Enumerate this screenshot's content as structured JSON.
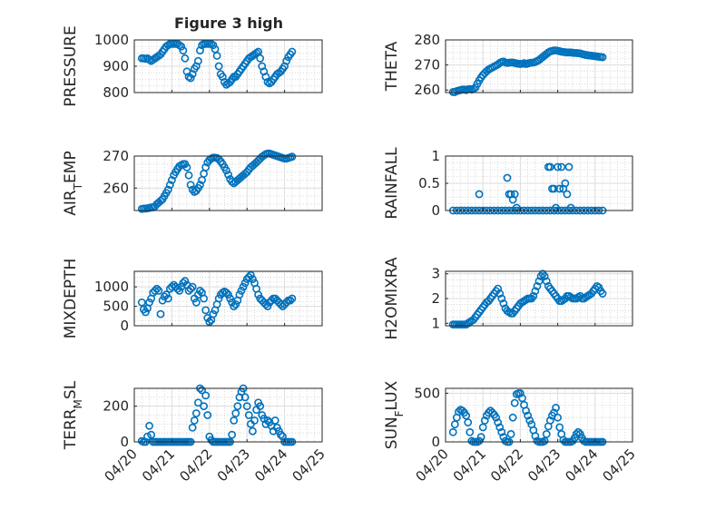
{
  "title": "Figure 3 high",
  "marker_color": "#0072bd",
  "x_tick_labels": [
    "04/20",
    "04/21",
    "04/22",
    "04/23",
    "04/24",
    "04/25"
  ],
  "chart_data": [
    {
      "type": "scatter",
      "ylabel": "PRESSURE",
      "ylim": [
        800,
        1000
      ],
      "yticks": [
        800,
        900,
        1000
      ],
      "x": [
        0.2,
        0.25,
        0.3,
        0.35,
        0.4,
        0.45,
        0.5,
        0.55,
        0.6,
        0.65,
        0.7,
        0.75,
        0.8,
        0.85,
        0.9,
        0.95,
        1.0,
        1.05,
        1.1,
        1.15,
        1.2,
        1.25,
        1.3,
        1.35,
        1.4,
        1.45,
        1.5,
        1.55,
        1.6,
        1.65,
        1.7,
        1.75,
        1.8,
        1.85,
        1.9,
        1.95,
        2.0,
        2.05,
        2.1,
        2.15,
        2.2,
        2.25,
        2.3,
        2.35,
        2.4,
        2.45,
        2.5,
        2.55,
        2.6,
        2.65,
        2.7,
        2.75,
        2.8,
        2.85,
        2.9,
        2.95,
        3.0,
        3.05,
        3.1,
        3.15,
        3.2,
        3.25,
        3.3,
        3.35,
        3.4,
        3.45,
        3.5,
        3.55,
        3.6,
        3.65,
        3.7,
        3.75,
        3.8,
        3.85,
        3.9,
        3.95,
        4.0,
        4.05,
        4.1,
        4.15,
        4.2
      ],
      "y": [
        930,
        930,
        928,
        930,
        925,
        920,
        925,
        930,
        935,
        940,
        945,
        955,
        965,
        975,
        980,
        985,
        985,
        985,
        985,
        985,
        980,
        975,
        960,
        930,
        880,
        860,
        855,
        870,
        890,
        900,
        920,
        960,
        980,
        985,
        985,
        985,
        985,
        985,
        980,
        965,
        940,
        900,
        870,
        860,
        840,
        830,
        835,
        840,
        850,
        860,
        860,
        870,
        880,
        890,
        900,
        910,
        920,
        930,
        935,
        940,
        945,
        950,
        955,
        930,
        900,
        880,
        860,
        840,
        835,
        840,
        850,
        860,
        870,
        875,
        880,
        890,
        900,
        920,
        935,
        945,
        955
      ]
    },
    {
      "type": "scatter",
      "ylabel": "THETA",
      "ylim": [
        259,
        280
      ],
      "yticks": [
        260,
        270,
        280
      ],
      "x": [
        0.2,
        0.25,
        0.3,
        0.35,
        0.4,
        0.45,
        0.5,
        0.55,
        0.6,
        0.65,
        0.7,
        0.75,
        0.8,
        0.85,
        0.9,
        0.95,
        1.0,
        1.05,
        1.1,
        1.15,
        1.2,
        1.25,
        1.3,
        1.35,
        1.4,
        1.45,
        1.5,
        1.55,
        1.6,
        1.65,
        1.7,
        1.75,
        1.8,
        1.85,
        1.9,
        1.95,
        2.0,
        2.05,
        2.1,
        2.15,
        2.2,
        2.25,
        2.3,
        2.35,
        2.4,
        2.45,
        2.5,
        2.55,
        2.6,
        2.65,
        2.7,
        2.75,
        2.8,
        2.85,
        2.9,
        2.95,
        3.0,
        3.05,
        3.1,
        3.15,
        3.2,
        3.25,
        3.3,
        3.35,
        3.4,
        3.45,
        3.5,
        3.55,
        3.6,
        3.65,
        3.7,
        3.75,
        3.8,
        3.85,
        3.9,
        3.95,
        4.0,
        4.05,
        4.1,
        4.15,
        4.2
      ],
      "y": [
        259.2,
        259.2,
        259.6,
        259.8,
        260,
        260.2,
        260.2,
        260,
        260.3,
        260.4,
        260.2,
        260.5,
        261,
        262.5,
        263.8,
        265,
        266,
        266.8,
        267.5,
        268.2,
        268.6,
        269,
        269.4,
        269.8,
        270.2,
        270.8,
        271.2,
        271.4,
        271,
        270.8,
        270.9,
        271,
        271,
        270.8,
        270.6,
        270.5,
        270.4,
        270.5,
        270.7,
        270.4,
        270.6,
        270.8,
        270.9,
        271,
        271.2,
        271.6,
        272,
        272.6,
        273.2,
        273.8,
        274.4,
        275,
        275.4,
        275.6,
        275.8,
        275.8,
        275.7,
        275.5,
        275.3,
        275.2,
        275.1,
        275,
        275,
        275,
        274.9,
        274.8,
        274.8,
        274.7,
        274.6,
        274.4,
        274.2,
        274,
        273.9,
        273.8,
        273.7,
        273.6,
        273.5,
        273.4,
        273.3,
        273.2,
        273.1
      ]
    },
    {
      "type": "scatter",
      "ylabel": "AIR_TEMP",
      "ylim": [
        253,
        270
      ],
      "yticks": [
        260,
        270
      ],
      "x": [
        0.2,
        0.25,
        0.3,
        0.35,
        0.4,
        0.45,
        0.5,
        0.55,
        0.6,
        0.65,
        0.7,
        0.75,
        0.8,
        0.85,
        0.9,
        0.95,
        1.0,
        1.05,
        1.1,
        1.15,
        1.2,
        1.25,
        1.3,
        1.35,
        1.4,
        1.45,
        1.5,
        1.55,
        1.6,
        1.65,
        1.7,
        1.75,
        1.8,
        1.85,
        1.9,
        1.95,
        2.0,
        2.05,
        2.1,
        2.15,
        2.2,
        2.25,
        2.3,
        2.35,
        2.4,
        2.45,
        2.5,
        2.55,
        2.6,
        2.65,
        2.7,
        2.75,
        2.8,
        2.85,
        2.9,
        2.95,
        3.0,
        3.05,
        3.1,
        3.15,
        3.2,
        3.25,
        3.3,
        3.35,
        3.4,
        3.45,
        3.5,
        3.55,
        3.6,
        3.65,
        3.7,
        3.75,
        3.8,
        3.85,
        3.9,
        3.95,
        4.0,
        4.05,
        4.1,
        4.15,
        4.2
      ],
      "y": [
        253.5,
        253.6,
        253.6,
        253.7,
        253.8,
        254,
        254,
        254.3,
        255,
        255.5,
        256,
        256.5,
        257.5,
        258.5,
        259.5,
        261,
        262.5,
        264,
        265,
        266,
        266.8,
        267.2,
        267.5,
        267.5,
        266.5,
        264,
        261,
        259.5,
        258.8,
        259.2,
        260,
        261,
        262.5,
        264.5,
        266.5,
        268,
        268.8,
        269.2,
        269.5,
        269.5,
        269.4,
        269,
        268.3,
        267.5,
        266.5,
        265.5,
        264.2,
        262.8,
        262,
        261.5,
        262,
        262.5,
        263,
        263.5,
        264,
        264.5,
        265,
        265.8,
        266.5,
        267,
        267.5,
        268,
        268.6,
        269.2,
        269.8,
        270.2,
        270.6,
        270.8,
        270.8,
        270.6,
        270.4,
        270.2,
        270,
        269.8,
        269.6,
        269.4,
        269.2,
        269.2,
        269.4,
        269.6,
        269.8
      ]
    },
    {
      "type": "scatter",
      "ylabel": "RAINFALL",
      "ylim": [
        0,
        1
      ],
      "yticks": [
        0,
        0.5,
        1
      ],
      "x": [
        0.2,
        0.3,
        0.4,
        0.5,
        0.6,
        0.7,
        0.8,
        0.9,
        1.0,
        1.1,
        1.2,
        1.3,
        1.4,
        1.5,
        1.6,
        1.7,
        1.8,
        1.9,
        2.0,
        2.1,
        2.2,
        2.3,
        2.4,
        2.5,
        2.6,
        2.7,
        2.8,
        2.9,
        3.0,
        3.1,
        3.2,
        3.3,
        3.4,
        3.5,
        3.6,
        3.7,
        3.8,
        3.9,
        4.0,
        4.1,
        4.2,
        0.9,
        1.65,
        1.7,
        1.75,
        1.8,
        1.85,
        1.9,
        2.75,
        2.8,
        2.85,
        2.9,
        2.95,
        3.0,
        3.05,
        3.1,
        3.15,
        3.2,
        3.25,
        3.3,
        3.35
      ],
      "y": [
        0,
        0,
        0,
        0,
        0,
        0,
        0,
        0,
        0,
        0,
        0,
        0,
        0,
        0,
        0,
        0,
        0,
        0,
        0,
        0,
        0,
        0,
        0,
        0,
        0,
        0,
        0,
        0,
        0,
        0,
        0,
        0,
        0,
        0,
        0,
        0,
        0,
        0,
        0,
        0,
        0,
        0.3,
        0.6,
        0.3,
        0.3,
        0.2,
        0.3,
        0.05,
        0.8,
        0.8,
        0.4,
        0.4,
        0.05,
        0.8,
        0.4,
        0.8,
        0.4,
        0.5,
        0.3,
        0.8,
        0.05
      ]
    },
    {
      "type": "scatter",
      "ylabel": "MIXDEPTH",
      "ylim": [
        0,
        1400
      ],
      "yticks": [
        0,
        500,
        1000
      ],
      "x": [
        0.2,
        0.25,
        0.3,
        0.35,
        0.4,
        0.45,
        0.5,
        0.55,
        0.6,
        0.65,
        0.7,
        0.75,
        0.8,
        0.85,
        0.9,
        0.95,
        1.0,
        1.05,
        1.1,
        1.15,
        1.2,
        1.25,
        1.3,
        1.35,
        1.4,
        1.45,
        1.5,
        1.55,
        1.6,
        1.65,
        1.7,
        1.75,
        1.8,
        1.85,
        1.9,
        1.95,
        2.0,
        2.05,
        2.1,
        2.15,
        2.2,
        2.25,
        2.3,
        2.35,
        2.4,
        2.45,
        2.5,
        2.55,
        2.6,
        2.65,
        2.7,
        2.75,
        2.8,
        2.85,
        2.9,
        2.95,
        3.0,
        3.05,
        3.1,
        3.15,
        3.2,
        3.25,
        3.3,
        3.35,
        3.4,
        3.45,
        3.5,
        3.55,
        3.6,
        3.65,
        3.7,
        3.75,
        3.8,
        3.85,
        3.9,
        3.95,
        4.0,
        4.05,
        4.1,
        4.15,
        4.2
      ],
      "y": [
        600,
        420,
        350,
        450,
        600,
        700,
        850,
        900,
        950,
        900,
        300,
        650,
        750,
        800,
        700,
        950,
        1000,
        1050,
        1000,
        950,
        900,
        1000,
        1100,
        1150,
        1050,
        900,
        950,
        1000,
        700,
        600,
        800,
        900,
        850,
        700,
        400,
        200,
        100,
        150,
        300,
        400,
        550,
        700,
        800,
        850,
        880,
        850,
        800,
        700,
        600,
        500,
        550,
        650,
        800,
        900,
        1000,
        1100,
        1200,
        1250,
        1300,
        1200,
        1100,
        950,
        800,
        700,
        650,
        600,
        550,
        500,
        600,
        650,
        700,
        700,
        650,
        600,
        550,
        500,
        550,
        600,
        650,
        650,
        700
      ]
    },
    {
      "type": "scatter",
      "ylabel": "H2OMIXRA",
      "ylim": [
        0.9,
        3.1
      ],
      "yticks": [
        1,
        2,
        3
      ],
      "x": [
        0.2,
        0.25,
        0.3,
        0.35,
        0.4,
        0.45,
        0.5,
        0.55,
        0.6,
        0.65,
        0.7,
        0.75,
        0.8,
        0.85,
        0.9,
        0.95,
        1.0,
        1.05,
        1.1,
        1.15,
        1.2,
        1.25,
        1.3,
        1.35,
        1.4,
        1.45,
        1.5,
        1.55,
        1.6,
        1.65,
        1.7,
        1.75,
        1.8,
        1.85,
        1.9,
        1.95,
        2.0,
        2.05,
        2.1,
        2.15,
        2.2,
        2.25,
        2.3,
        2.35,
        2.4,
        2.45,
        2.5,
        2.55,
        2.6,
        2.65,
        2.7,
        2.75,
        2.8,
        2.85,
        2.9,
        2.95,
        3.0,
        3.05,
        3.1,
        3.15,
        3.2,
        3.25,
        3.3,
        3.35,
        3.4,
        3.45,
        3.5,
        3.55,
        3.6,
        3.65,
        3.7,
        3.75,
        3.8,
        3.85,
        3.9,
        3.95,
        4.0,
        4.05,
        4.1,
        4.15,
        4.2
      ],
      "y": [
        0.95,
        0.95,
        0.95,
        0.95,
        0.95,
        0.95,
        0.95,
        0.95,
        1.0,
        1.05,
        1.1,
        1.15,
        1.25,
        1.35,
        1.45,
        1.55,
        1.65,
        1.75,
        1.85,
        1.9,
        2.0,
        2.1,
        2.2,
        2.3,
        2.4,
        2.2,
        2.0,
        1.8,
        1.6,
        1.5,
        1.45,
        1.4,
        1.4,
        1.5,
        1.6,
        1.7,
        1.8,
        1.85,
        1.9,
        1.95,
        2.0,
        2.0,
        2.0,
        2.1,
        2.3,
        2.5,
        2.7,
        2.9,
        3.0,
        2.9,
        2.7,
        2.5,
        2.4,
        2.3,
        2.2,
        2.1,
        2.0,
        1.9,
        1.9,
        1.95,
        2.0,
        2.1,
        2.1,
        2.05,
        2.0,
        2.0,
        2.0,
        2.05,
        2.1,
        2.0,
        2.0,
        2.05,
        2.1,
        2.15,
        2.2,
        2.3,
        2.4,
        2.5,
        2.45,
        2.3,
        2.2
      ]
    },
    {
      "type": "scatter",
      "ylabel": "TERR_MSL",
      "ylim": [
        0,
        300
      ],
      "yticks": [
        0,
        200
      ],
      "x": [
        0.2,
        0.25,
        0.3,
        0.35,
        0.4,
        0.45,
        0.5,
        0.55,
        0.6,
        0.65,
        0.7,
        0.75,
        0.8,
        0.85,
        0.9,
        0.95,
        1.0,
        1.05,
        1.1,
        1.15,
        1.2,
        1.25,
        1.3,
        1.35,
        1.4,
        1.45,
        1.5,
        1.55,
        1.6,
        1.65,
        1.7,
        1.75,
        1.8,
        1.85,
        1.9,
        1.95,
        2.0,
        2.05,
        2.1,
        2.15,
        2.2,
        2.25,
        2.3,
        2.35,
        2.4,
        2.45,
        2.5,
        2.55,
        2.6,
        2.65,
        2.7,
        2.75,
        2.8,
        2.85,
        2.9,
        2.95,
        3.0,
        3.05,
        3.1,
        3.15,
        3.2,
        3.25,
        3.3,
        3.35,
        3.4,
        3.45,
        3.5,
        3.55,
        3.6,
        3.65,
        3.7,
        3.75,
        3.8,
        3.85,
        3.9,
        3.95,
        4.0,
        4.05,
        4.1,
        4.15,
        4.2
      ],
      "y": [
        5,
        0,
        0,
        30,
        90,
        40,
        0,
        0,
        0,
        0,
        0,
        0,
        0,
        0,
        0,
        0,
        0,
        0,
        0,
        0,
        0,
        0,
        0,
        0,
        0,
        0,
        0,
        80,
        120,
        160,
        220,
        300,
        290,
        200,
        260,
        150,
        30,
        10,
        0,
        0,
        0,
        0,
        0,
        0,
        0,
        0,
        0,
        0,
        40,
        120,
        160,
        200,
        250,
        280,
        300,
        250,
        200,
        150,
        100,
        60,
        120,
        180,
        220,
        200,
        150,
        130,
        100,
        120,
        110,
        90,
        60,
        120,
        80,
        60,
        40,
        30,
        0,
        0,
        0,
        0,
        0
      ]
    },
    {
      "type": "scatter",
      "ylabel": "SUN_FLUX",
      "ylim": [
        0,
        550
      ],
      "yticks": [
        0,
        500
      ],
      "x": [
        0.2,
        0.25,
        0.3,
        0.35,
        0.4,
        0.45,
        0.5,
        0.55,
        0.6,
        0.65,
        0.7,
        0.75,
        0.8,
        0.85,
        0.9,
        0.95,
        1.0,
        1.05,
        1.1,
        1.15,
        1.2,
        1.25,
        1.3,
        1.35,
        1.4,
        1.45,
        1.5,
        1.55,
        1.6,
        1.65,
        1.7,
        1.75,
        1.8,
        1.85,
        1.9,
        1.95,
        2.0,
        2.05,
        2.1,
        2.15,
        2.2,
        2.25,
        2.3,
        2.35,
        2.4,
        2.45,
        2.5,
        2.55,
        2.6,
        2.65,
        2.7,
        2.75,
        2.8,
        2.85,
        2.9,
        2.95,
        3.0,
        3.05,
        3.1,
        3.15,
        3.2,
        3.25,
        3.3,
        3.35,
        3.4,
        3.45,
        3.5,
        3.55,
        3.6,
        3.65,
        3.7,
        3.75,
        3.8,
        3.85,
        3.9,
        3.95,
        4.0,
        4.05,
        4.1,
        4.15,
        4.2
      ],
      "y": [
        100,
        180,
        250,
        310,
        330,
        320,
        300,
        270,
        200,
        100,
        10,
        0,
        0,
        0,
        10,
        50,
        150,
        220,
        270,
        300,
        320,
        300,
        280,
        250,
        200,
        150,
        100,
        50,
        10,
        0,
        0,
        80,
        250,
        400,
        490,
        500,
        500,
        450,
        380,
        320,
        270,
        220,
        180,
        120,
        60,
        10,
        0,
        0,
        0,
        10,
        80,
        160,
        220,
        270,
        300,
        350,
        250,
        150,
        80,
        20,
        0,
        0,
        0,
        0,
        10,
        40,
        80,
        100,
        80,
        40,
        10,
        0,
        0,
        0,
        0,
        0,
        0,
        0,
        0,
        0,
        0
      ]
    }
  ]
}
